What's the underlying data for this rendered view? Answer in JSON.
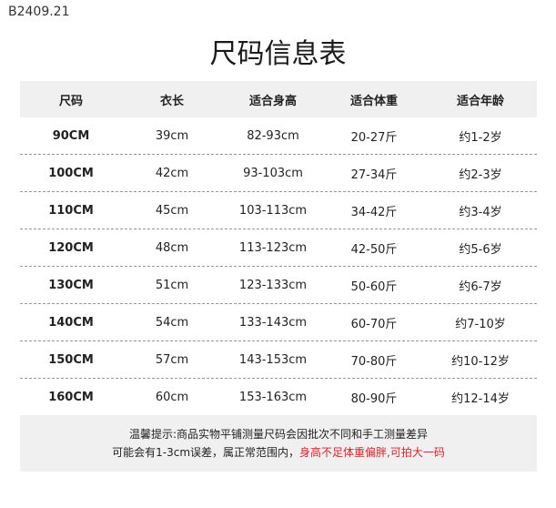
{
  "code": "B2409.21",
  "title": "尺码信息表",
  "headers": [
    "尺码",
    "衣长",
    "适合身高",
    "适合体重",
    "适合年龄"
  ],
  "rows": [
    [
      "90CM",
      "39cm",
      "82-93cm",
      "20-27斤",
      "约1-2岁"
    ],
    [
      "100CM",
      "42cm",
      "93-103cm",
      "27-34斤",
      "约2-3岁"
    ],
    [
      "110CM",
      "45cm",
      "103-113cm",
      "34-42斤",
      "约3-4岁"
    ],
    [
      "120CM",
      "48cm",
      "113-123cm",
      "42-50斤",
      "约5-6岁"
    ],
    [
      "130CM",
      "51cm",
      "123-133cm",
      "50-60斤",
      "约6-7岁"
    ],
    [
      "140CM",
      "54cm",
      "133-143cm",
      "60-70斤",
      "约7-10岁"
    ],
    [
      "150CM",
      "57cm",
      "143-153cm",
      "70-80斤",
      "约10-12岁"
    ],
    [
      "160CM",
      "60cm",
      "153-163cm",
      "80-90斤",
      "约12-14岁"
    ]
  ],
  "note": {
    "line1": "温馨提示:商品实物平铺测量尺码会因批次不同和手工测量差异",
    "line2": "可能会有1-3cm误差，属正常范围内，",
    "line2_red": "身高不足体重偏胖,可拍大一码",
    "red_color": "#d6232a"
  }
}
